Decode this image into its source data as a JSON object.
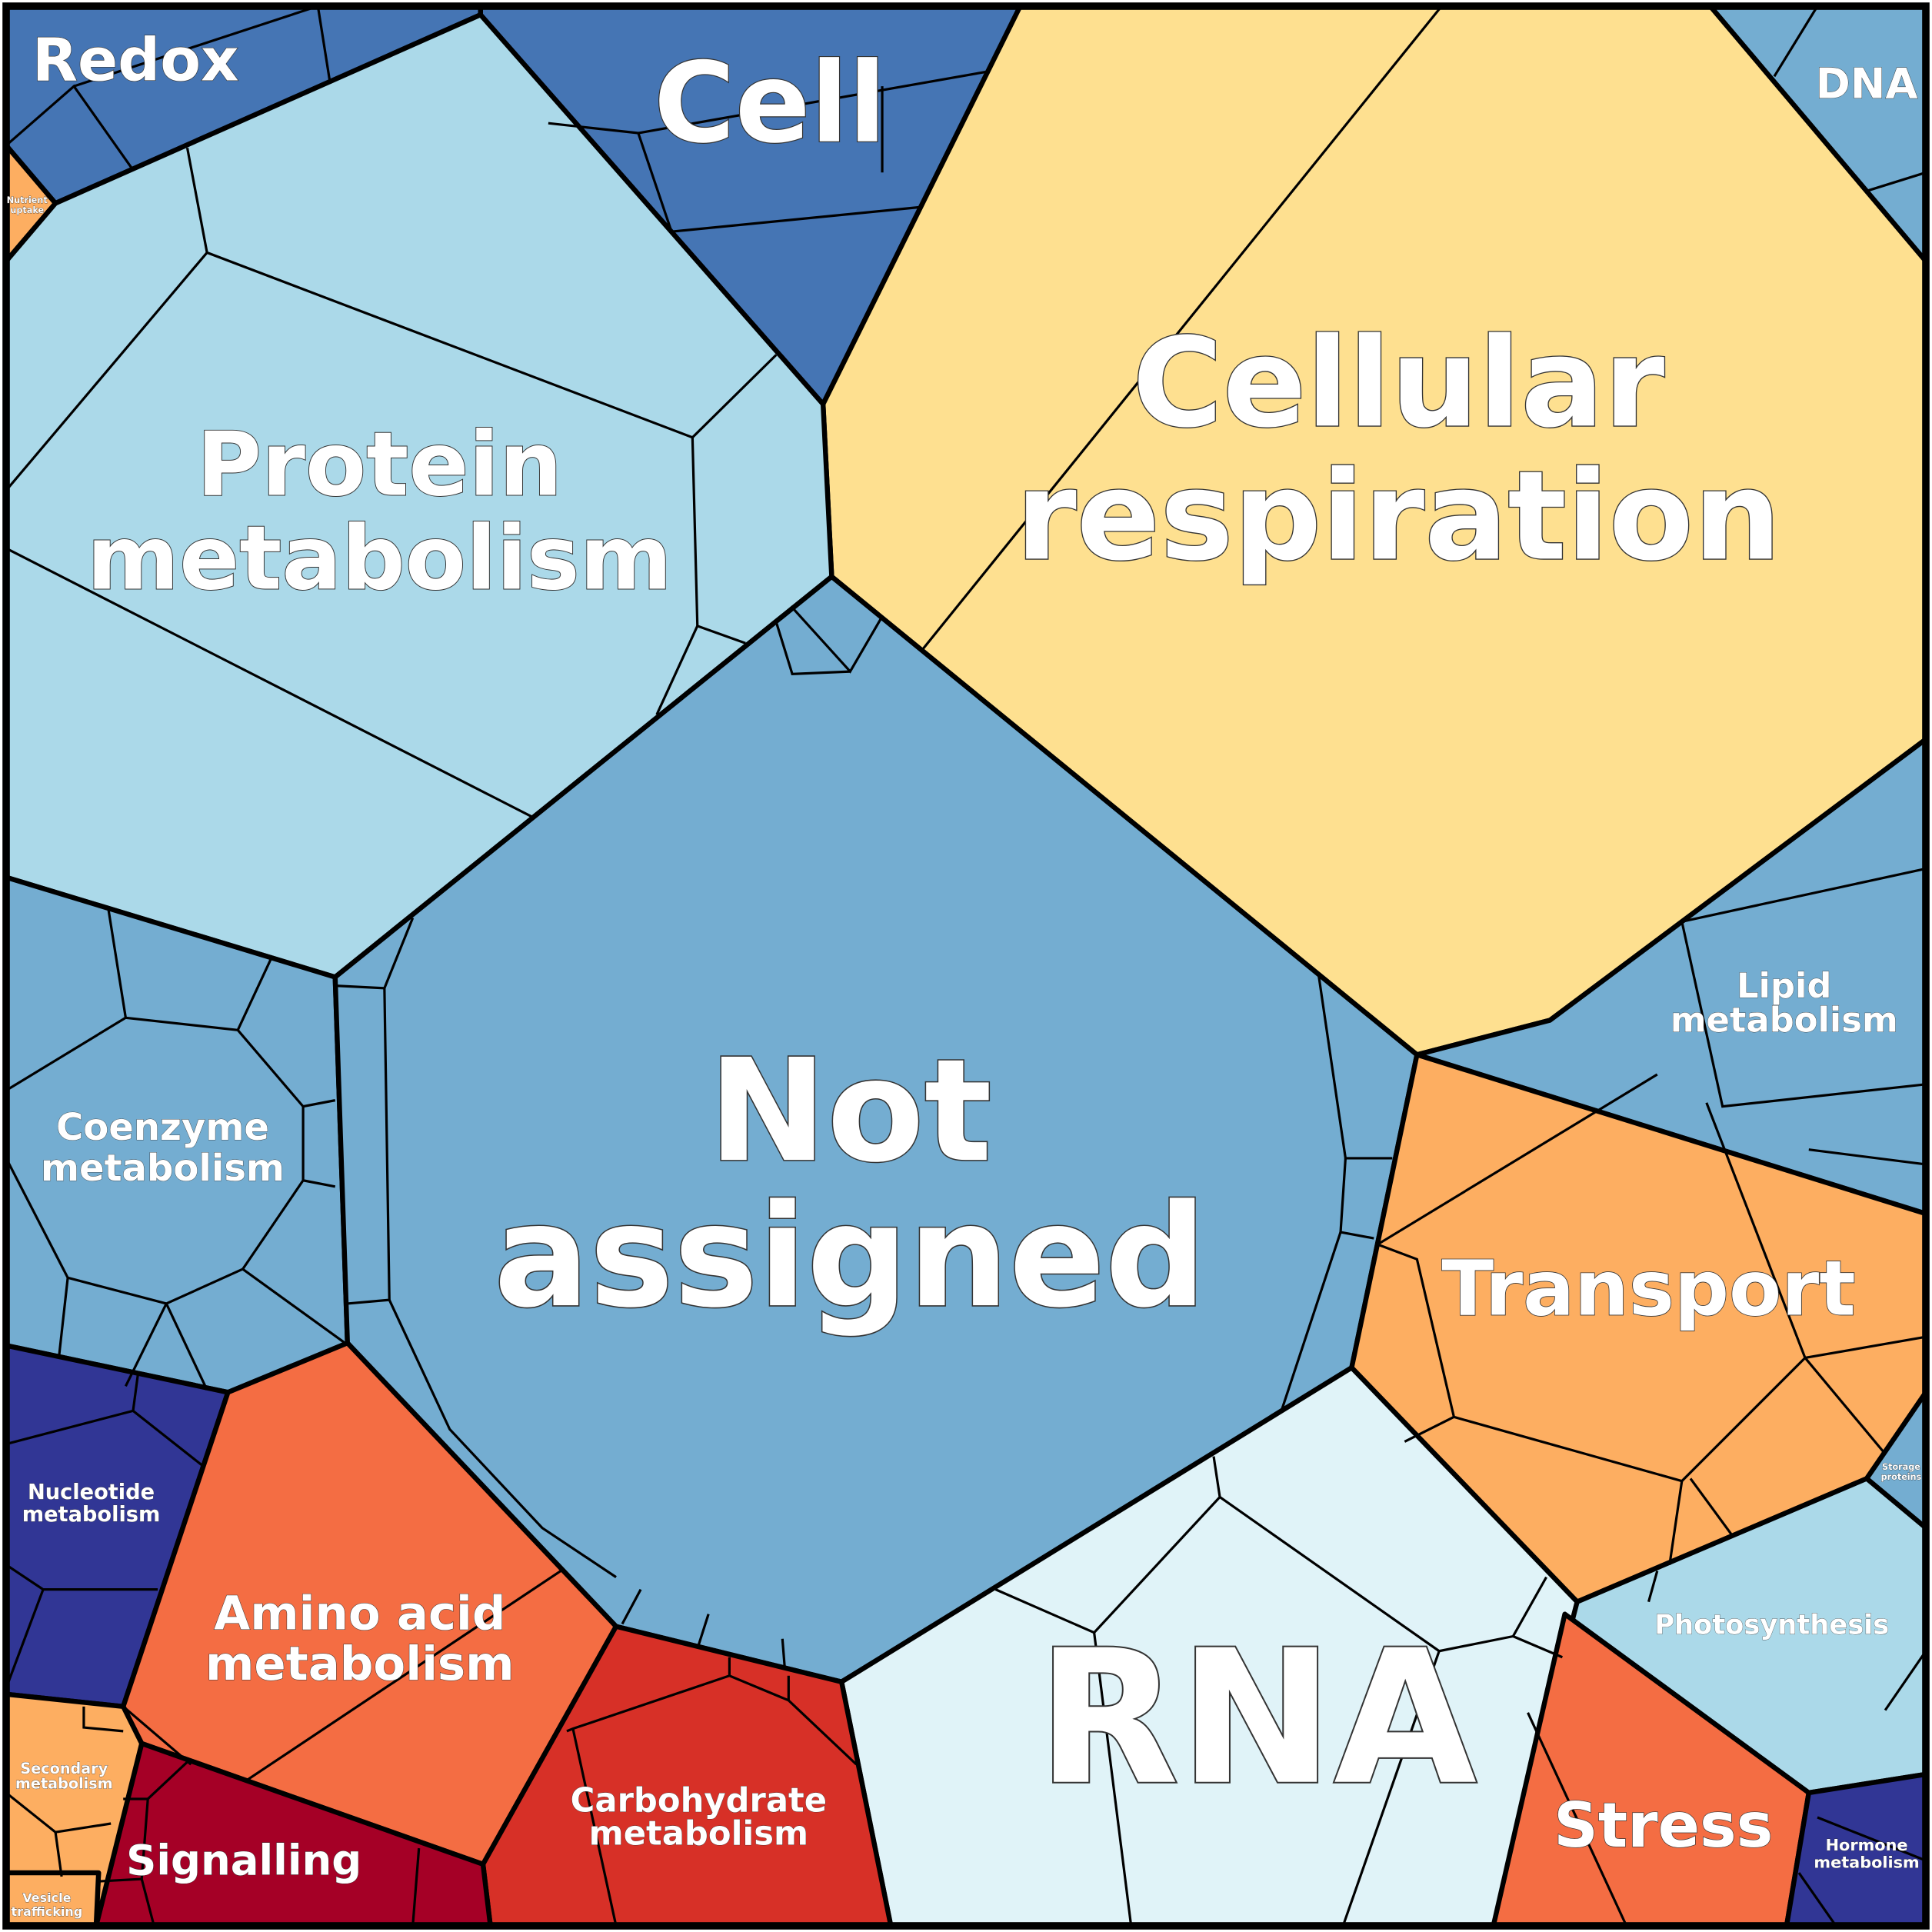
{
  "cells": [
    {
      "label": [
        "Redox"
      ],
      "color": "#4575b4"
    },
    {
      "label": [
        "Nutrient",
        "uptake"
      ],
      "color": "#fdae61"
    },
    {
      "label": [
        "Cell"
      ],
      "color": "#4575b4"
    },
    {
      "label": [
        "DNA"
      ],
      "color": "#74add1"
    },
    {
      "label": [
        "Cellular",
        "respiration"
      ],
      "color": "#fee090"
    },
    {
      "label": [
        "Protein",
        "metabolism"
      ],
      "color": "#abd9e9"
    },
    {
      "label": [
        "Lipid",
        "metabolism"
      ],
      "color": "#74add1"
    },
    {
      "label": [
        "Coenzyme",
        "metabolism"
      ],
      "color": "#74add1"
    },
    {
      "label": [
        "Not",
        "assigned"
      ],
      "color": "#74add1"
    },
    {
      "label": [
        "Transport"
      ],
      "color": "#fdae61"
    },
    {
      "label": [
        "Storage",
        "proteins"
      ],
      "color": "#74add1"
    },
    {
      "label": [
        "Photosynthesis"
      ],
      "color": "#abd9e9"
    },
    {
      "label": [
        "RNA"
      ],
      "color": "#e0f3f8"
    },
    {
      "label": [
        "Stress"
      ],
      "color": "#f46d43"
    },
    {
      "label": [
        "Hormone",
        "metabolism"
      ],
      "color": "#313695"
    },
    {
      "label": [
        "Nucleotide",
        "metabolism"
      ],
      "color": "#313695"
    },
    {
      "label": [
        "Amino acid",
        "metabolism"
      ],
      "color": "#f46d43"
    },
    {
      "label": [
        "Carbohydrate",
        "metabolism"
      ],
      "color": "#d73027"
    },
    {
      "label": [
        "Signalling"
      ],
      "color": "#a50026"
    },
    {
      "label": [
        "Secondary",
        "metabolism"
      ],
      "color": "#fdae61"
    },
    {
      "label": [
        "Vesicle",
        "trafficking"
      ],
      "color": "#fdae61"
    }
  ]
}
